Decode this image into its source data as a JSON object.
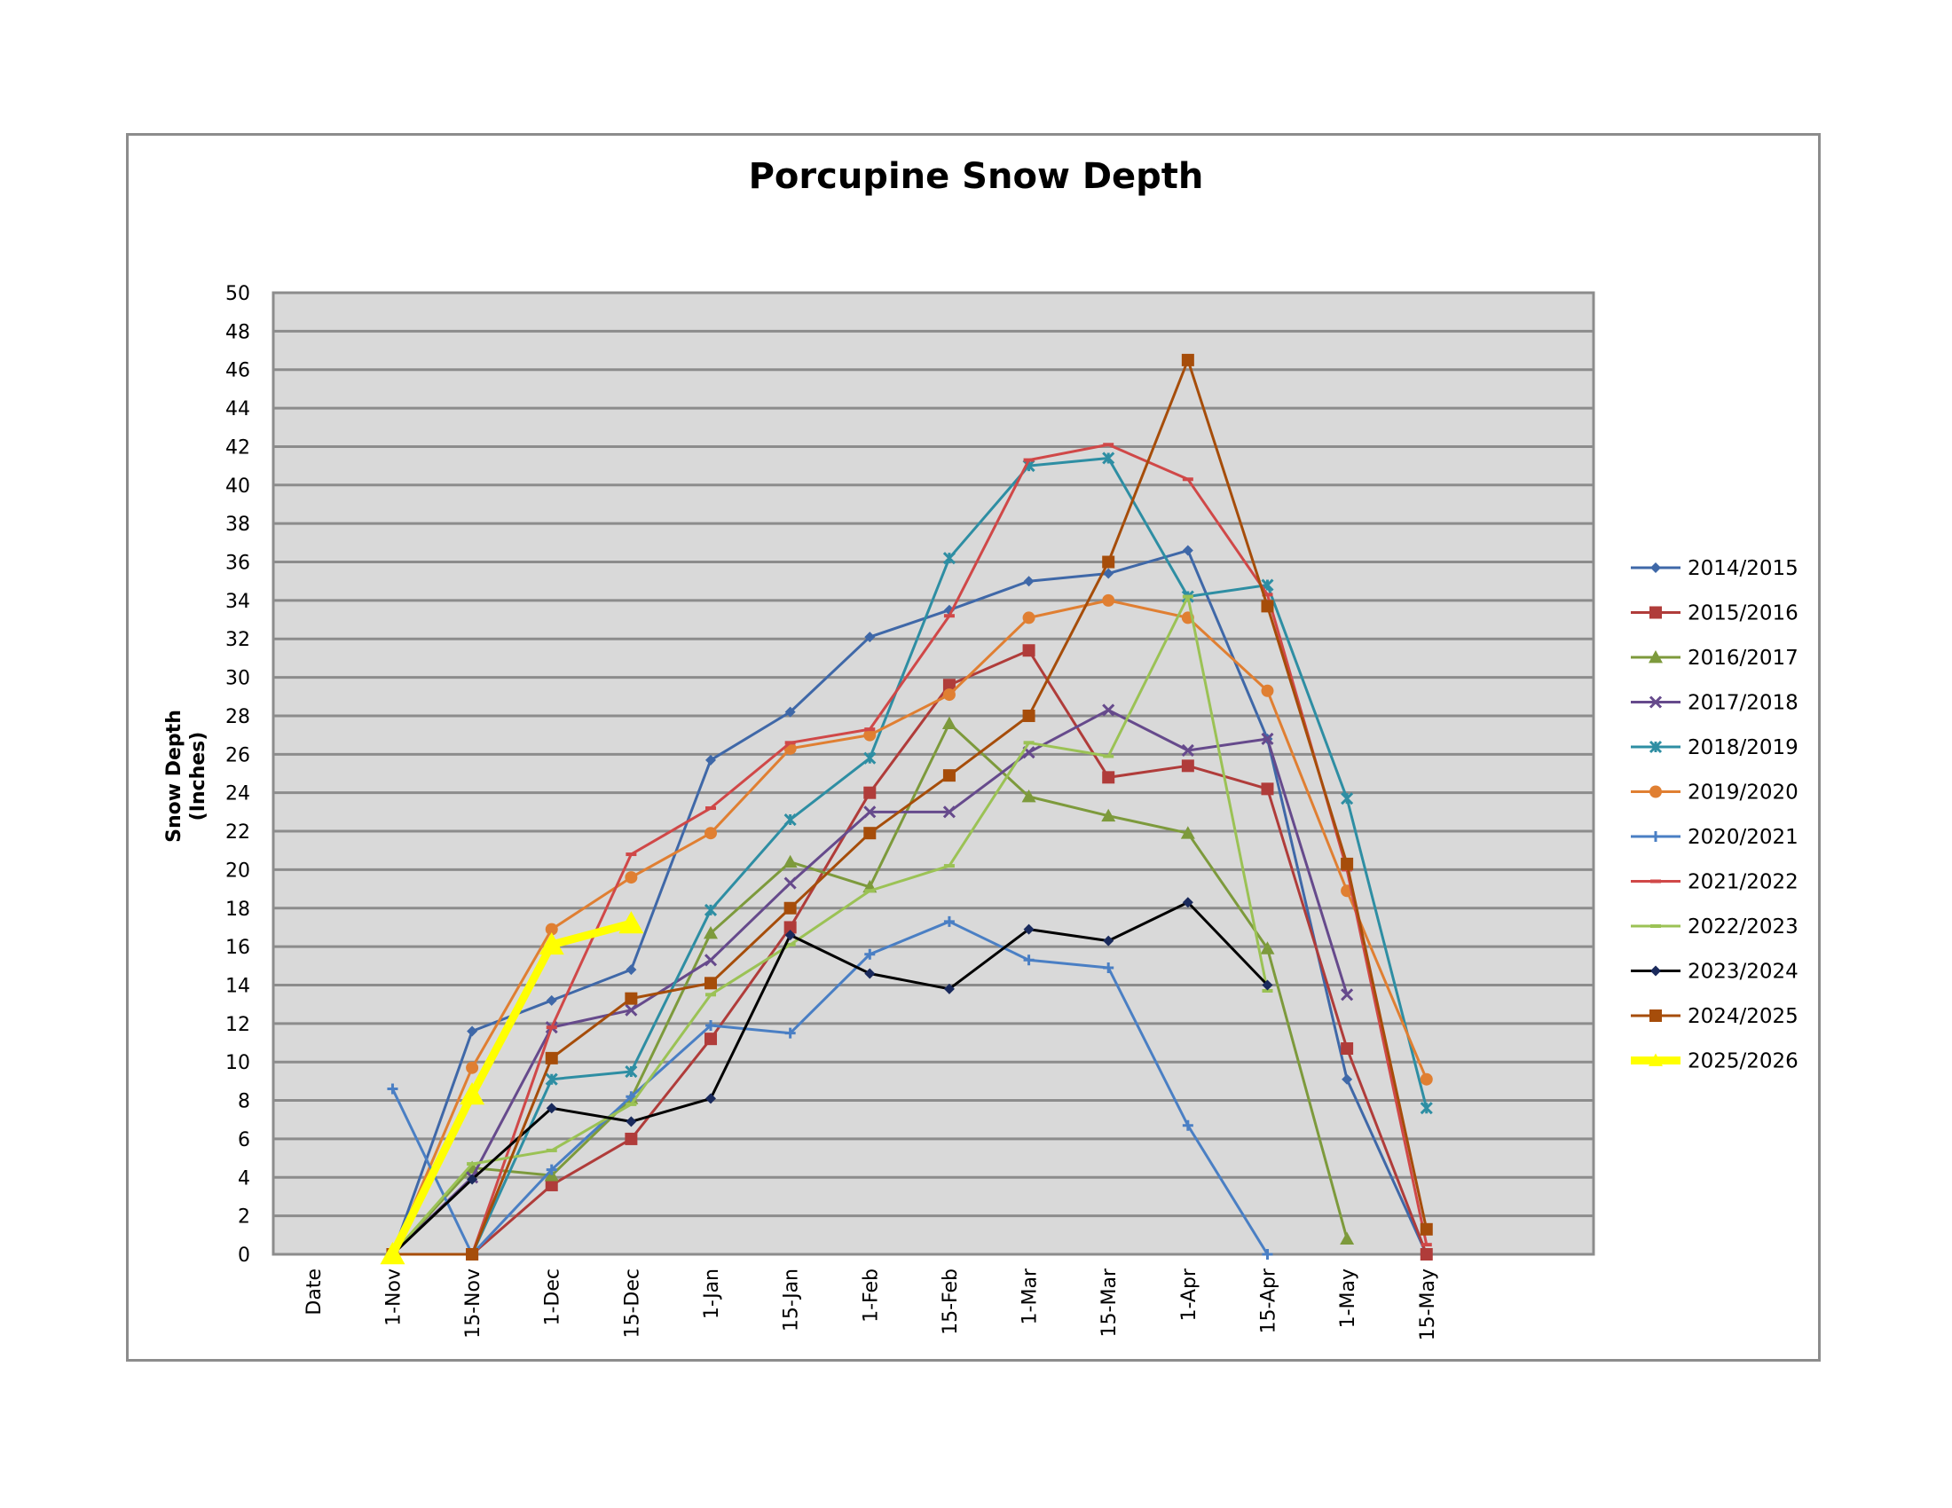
{
  "chart_data": {
    "type": "line",
    "title": "Porcupine Snow Depth",
    "xlabel": "",
    "ylabel": "Snow Depth (Inches)",
    "ylim": [
      0,
      50
    ],
    "ytick_step": 2,
    "grid": true,
    "legend_position": "right",
    "categories": [
      "Date",
      "1-Nov",
      "15-Nov",
      "1-Dec",
      "15-Dec",
      "1-Jan",
      "15-Jan",
      "1-Feb",
      "15-Feb",
      "1-Mar",
      "15-Mar",
      "1-Apr",
      "15-Apr",
      "1-May",
      "15-May"
    ],
    "series": [
      {
        "name": "2014/2015",
        "color": "#3f68a8",
        "marker": "diamond",
        "values": [
          null,
          0,
          11.6,
          13.2,
          14.8,
          25.7,
          28.2,
          32.1,
          33.5,
          35.0,
          35.4,
          36.6,
          26.8,
          9.1,
          0
        ]
      },
      {
        "name": "2015/2016",
        "color": "#b03c3a",
        "marker": "square",
        "values": [
          null,
          null,
          0,
          3.6,
          6.0,
          11.2,
          17.0,
          24.0,
          29.6,
          31.4,
          24.8,
          25.4,
          24.2,
          10.7,
          0
        ]
      },
      {
        "name": "2016/2017",
        "color": "#7d9a3c",
        "marker": "triangle",
        "values": [
          null,
          0,
          4.5,
          4.1,
          8.1,
          16.7,
          20.4,
          19.1,
          27.6,
          23.8,
          22.8,
          21.9,
          15.9,
          0.8,
          null
        ]
      },
      {
        "name": "2017/2018",
        "color": "#664a8c",
        "marker": "x",
        "values": [
          null,
          0,
          4.0,
          11.8,
          12.7,
          15.3,
          19.3,
          23.0,
          23.0,
          26.1,
          28.3,
          26.2,
          26.8,
          13.5,
          null
        ]
      },
      {
        "name": "2018/2019",
        "color": "#2e8ea3",
        "marker": "star",
        "values": [
          null,
          null,
          0,
          9.1,
          9.5,
          17.9,
          22.6,
          25.8,
          36.2,
          41.0,
          41.4,
          34.2,
          34.8,
          23.7,
          7.6
        ]
      },
      {
        "name": "2019/2020",
        "color": "#e07f32",
        "marker": "circle",
        "values": [
          null,
          0,
          9.7,
          16.9,
          19.6,
          21.9,
          26.3,
          27.0,
          29.1,
          33.1,
          34.0,
          33.1,
          29.3,
          18.9,
          9.1
        ]
      },
      {
        "name": "2020/2021",
        "color": "#4a7fc4",
        "marker": "plus",
        "values": [
          null,
          8.6,
          0,
          4.4,
          8.2,
          11.9,
          11.5,
          15.6,
          17.3,
          15.3,
          14.9,
          6.7,
          0,
          null,
          null
        ]
      },
      {
        "name": "2021/2022",
        "color": "#d04848",
        "marker": "dash",
        "values": [
          null,
          null,
          0,
          11.8,
          20.8,
          23.2,
          26.6,
          27.3,
          33.2,
          41.3,
          42.1,
          40.3,
          34.3,
          20.0,
          0.5
        ]
      },
      {
        "name": "2022/2023",
        "color": "#9bc255",
        "marker": "dash",
        "values": [
          null,
          0,
          4.7,
          5.4,
          7.8,
          13.5,
          16.1,
          18.9,
          20.2,
          26.6,
          25.9,
          34.2,
          13.7,
          null,
          null
        ]
      },
      {
        "name": "2023/2024",
        "color": "#000000",
        "marker": "diamond-navy",
        "values": [
          null,
          0,
          3.9,
          7.6,
          6.9,
          8.1,
          16.6,
          14.6,
          13.8,
          16.9,
          16.3,
          18.3,
          14.0,
          null,
          null
        ]
      },
      {
        "name": "2024/2025",
        "color": "#a64d0a",
        "marker": "square",
        "values": [
          null,
          0,
          0,
          10.2,
          13.3,
          14.1,
          18.0,
          21.9,
          24.9,
          28.0,
          36.0,
          46.5,
          33.7,
          20.3,
          1.3
        ]
      },
      {
        "name": "2025/2026",
        "color": "#ffff00",
        "marker": "triangle",
        "values": [
          null,
          0,
          8.3,
          16.1,
          17.2,
          null,
          null,
          null,
          null,
          null,
          null,
          null,
          null,
          null,
          null
        ]
      }
    ]
  }
}
